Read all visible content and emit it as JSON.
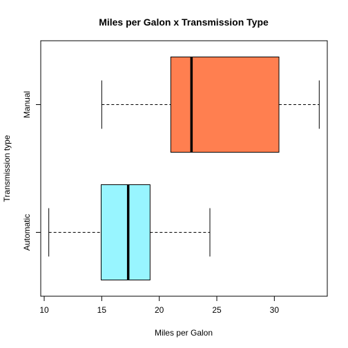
{
  "chart_data": {
    "type": "boxplot",
    "orientation": "horizontal",
    "title": "Miles per Galon x Transmission Type",
    "xlabel": "Miles per Galon",
    "ylabel": "Transmission type",
    "xlim": [
      9.7,
      34.6
    ],
    "xticks": [
      10,
      15,
      20,
      25,
      30
    ],
    "categories": [
      "Automatic",
      "Manual"
    ],
    "boxes": [
      {
        "category": "Automatic",
        "min": 10.4,
        "q1": 14.95,
        "median": 17.3,
        "q3": 19.2,
        "max": 24.4,
        "color": "#98F5FF"
      },
      {
        "category": "Manual",
        "min": 15.0,
        "q1": 21.0,
        "median": 22.8,
        "q3": 30.4,
        "max": 33.9,
        "color": "#FF7F50"
      }
    ],
    "grid": false,
    "legend": "none"
  }
}
